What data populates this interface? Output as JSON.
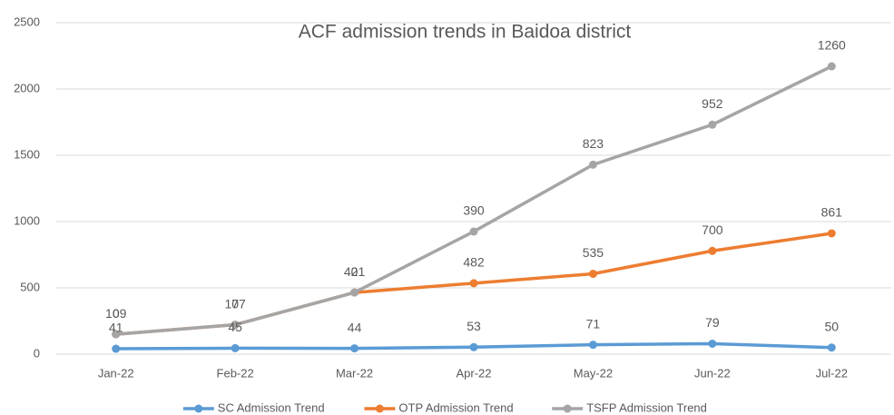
{
  "chart_data": {
    "type": "line",
    "stacked": true,
    "title": "ACF admission trends in Baidoa district",
    "categories": [
      "Jan-22",
      "Feb-22",
      "Mar-22",
      "Apr-22",
      "May-22",
      "Jun-22",
      "Jul-22"
    ],
    "series": [
      {
        "name": "SC Admission Trend",
        "color": "#5b9bd5",
        "values": [
          41,
          45,
          44,
          53,
          71,
          79,
          50
        ]
      },
      {
        "name": "OTP Admission Trend",
        "color": "#ed7d31",
        "values": [
          109,
          177,
          421,
          482,
          535,
          700,
          861
        ]
      },
      {
        "name": "TSFP Admission Trend",
        "color": "#a5a5a5",
        "values": [
          0,
          0,
          0,
          390,
          823,
          952,
          1260
        ]
      }
    ],
    "ylim": [
      0,
      2500
    ],
    "yticks": [
      0,
      500,
      1000,
      1500,
      2000,
      2500
    ],
    "grid": true,
    "legend": "bottom"
  }
}
